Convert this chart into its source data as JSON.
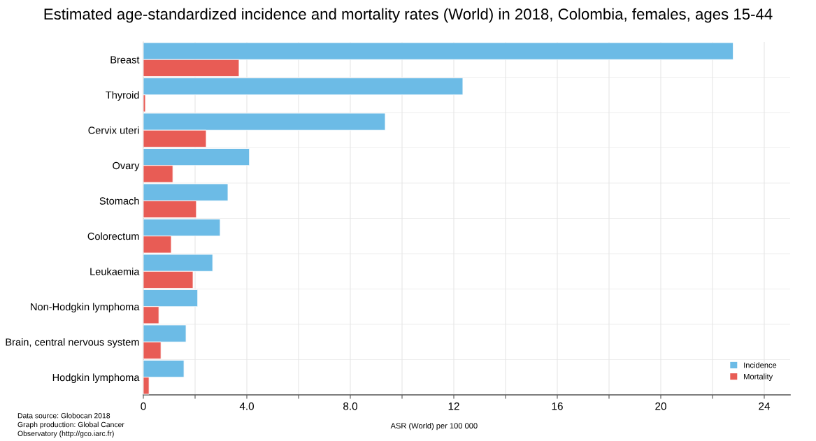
{
  "chart_data": {
    "type": "bar",
    "orientation": "horizontal",
    "title": "Estimated age-standardized incidence and mortality rates (World) in 2018, Colombia, females, ages 15-44",
    "xlabel": "ASR (World) per 100 000",
    "categories": [
      "Breast",
      "Thyroid",
      "Cervix uteri",
      "Ovary",
      "Stomach",
      "Colorectum",
      "Leukaemia",
      "Non-Hodgkin lymphoma",
      "Brain, central nervous system",
      "Hodgkin lymphoma"
    ],
    "series": [
      {
        "name": "Incidence",
        "color": "#6cbbe6",
        "values": [
          22.8,
          12.35,
          9.35,
          4.1,
          3.27,
          2.97,
          2.68,
          2.1,
          1.65,
          1.57
        ]
      },
      {
        "name": "Mortality",
        "color": "#e85c55",
        "values": [
          3.7,
          0.08,
          2.43,
          1.14,
          2.05,
          1.08,
          1.92,
          0.6,
          0.68,
          0.22
        ]
      }
    ],
    "xlim": [
      0,
      25
    ],
    "xticks": [
      0,
      {
        "value": 2,
        "label": null
      },
      {
        "value": 4,
        "label": "4.0"
      },
      {
        "value": 6,
        "label": null
      },
      {
        "value": 8,
        "label": "8.0"
      },
      {
        "value": 10,
        "label": null
      },
      12,
      {
        "value": 14,
        "label": null
      },
      16,
      {
        "value": 18,
        "label": null
      },
      20,
      {
        "value": 22,
        "label": null
      },
      24
    ],
    "grid": true,
    "legend": "bottom right",
    "annotations": [
      "Data source: Globocan 2018\nGraph production: Global Cancer\nObservatory (http://gco.iarc.fr)"
    ]
  }
}
